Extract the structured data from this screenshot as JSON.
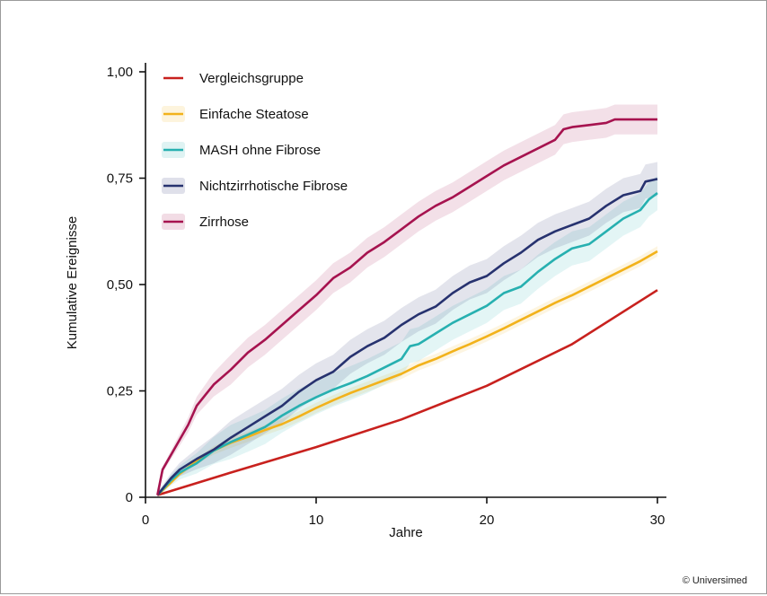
{
  "chart_data": {
    "type": "line",
    "xlabel": "Jahre",
    "ylabel": "Kumulative Ereignisse",
    "xlim": [
      0,
      30.5
    ],
    "ylim": [
      0,
      1.0
    ],
    "xticks": [
      0,
      10,
      20,
      30
    ],
    "xtick_labels": [
      "0",
      "10",
      "20",
      "30"
    ],
    "yticks": [
      0,
      0.25,
      0.5,
      0.75,
      1.0
    ],
    "ytick_labels": [
      "0",
      "0,25",
      "0,50",
      "0,75",
      "1,00"
    ],
    "grid": false,
    "legend_position": "top-left",
    "series": [
      {
        "name": "Vergleichsgruppe",
        "color": "#c8211e",
        "band": false,
        "points": [
          [
            0.7,
            0.005
          ],
          [
            5,
            0.058
          ],
          [
            10,
            0.118
          ],
          [
            15,
            0.183
          ],
          [
            20,
            0.262
          ],
          [
            25,
            0.36
          ],
          [
            30,
            0.487
          ]
        ]
      },
      {
        "name": "Einfache Steatose",
        "color": "#f2b21b",
        "band": true,
        "band_width": 0.012,
        "points": [
          [
            0.7,
            0.005
          ],
          [
            1.5,
            0.035
          ],
          [
            2,
            0.055
          ],
          [
            3,
            0.085
          ],
          [
            4,
            0.11
          ],
          [
            5,
            0.128
          ],
          [
            6,
            0.142
          ],
          [
            7,
            0.158
          ],
          [
            8,
            0.172
          ],
          [
            9,
            0.19
          ],
          [
            10,
            0.21
          ],
          [
            11,
            0.228
          ],
          [
            12,
            0.245
          ],
          [
            13,
            0.26
          ],
          [
            14,
            0.275
          ],
          [
            15,
            0.29
          ],
          [
            16,
            0.31
          ],
          [
            17,
            0.325
          ],
          [
            18,
            0.343
          ],
          [
            19,
            0.36
          ],
          [
            20,
            0.378
          ],
          [
            21,
            0.397
          ],
          [
            22,
            0.417
          ],
          [
            23,
            0.437
          ],
          [
            24,
            0.457
          ],
          [
            25,
            0.475
          ],
          [
            26,
            0.495
          ],
          [
            27,
            0.515
          ],
          [
            28,
            0.535
          ],
          [
            29,
            0.555
          ],
          [
            30,
            0.578
          ]
        ]
      },
      {
        "name": "MASH ohne Fibrose",
        "color": "#27b0b0",
        "band": true,
        "band_width": 0.04,
        "points": [
          [
            0.7,
            0.005
          ],
          [
            1.5,
            0.04
          ],
          [
            2,
            0.058
          ],
          [
            3,
            0.08
          ],
          [
            4,
            0.11
          ],
          [
            5,
            0.13
          ],
          [
            6,
            0.147
          ],
          [
            7,
            0.165
          ],
          [
            8,
            0.192
          ],
          [
            9,
            0.215
          ],
          [
            10,
            0.235
          ],
          [
            11,
            0.253
          ],
          [
            12,
            0.268
          ],
          [
            13,
            0.285
          ],
          [
            14,
            0.305
          ],
          [
            15,
            0.325
          ],
          [
            15.5,
            0.355
          ],
          [
            16,
            0.36
          ],
          [
            17,
            0.385
          ],
          [
            18,
            0.41
          ],
          [
            19,
            0.43
          ],
          [
            20,
            0.45
          ],
          [
            21,
            0.48
          ],
          [
            22,
            0.495
          ],
          [
            23,
            0.53
          ],
          [
            24,
            0.56
          ],
          [
            25,
            0.585
          ],
          [
            26,
            0.595
          ],
          [
            27,
            0.625
          ],
          [
            28,
            0.655
          ],
          [
            29,
            0.675
          ],
          [
            29.5,
            0.7
          ],
          [
            30,
            0.715
          ]
        ]
      },
      {
        "name": "Nichtzirrhotische Fibrose",
        "color": "#27326f",
        "band": true,
        "band_width": 0.04,
        "points": [
          [
            0.7,
            0.005
          ],
          [
            1.5,
            0.045
          ],
          [
            2,
            0.065
          ],
          [
            3,
            0.09
          ],
          [
            4,
            0.112
          ],
          [
            5,
            0.14
          ],
          [
            6,
            0.165
          ],
          [
            7,
            0.19
          ],
          [
            8,
            0.215
          ],
          [
            9,
            0.248
          ],
          [
            10,
            0.275
          ],
          [
            11,
            0.295
          ],
          [
            12,
            0.33
          ],
          [
            13,
            0.355
          ],
          [
            14,
            0.375
          ],
          [
            15,
            0.405
          ],
          [
            16,
            0.43
          ],
          [
            17,
            0.448
          ],
          [
            18,
            0.48
          ],
          [
            19,
            0.505
          ],
          [
            20,
            0.52
          ],
          [
            21,
            0.55
          ],
          [
            22,
            0.575
          ],
          [
            23,
            0.605
          ],
          [
            24,
            0.625
          ],
          [
            25,
            0.64
          ],
          [
            26,
            0.655
          ],
          [
            27,
            0.685
          ],
          [
            28,
            0.71
          ],
          [
            29,
            0.72
          ],
          [
            29.3,
            0.742
          ],
          [
            30,
            0.748
          ]
        ]
      },
      {
        "name": "Zirrhose",
        "color": "#a6134f",
        "band": true,
        "band_width": 0.035,
        "points": [
          [
            0.7,
            0.005
          ],
          [
            1,
            0.065
          ],
          [
            1.5,
            0.1
          ],
          [
            2,
            0.135
          ],
          [
            2.5,
            0.17
          ],
          [
            3,
            0.215
          ],
          [
            3.5,
            0.24
          ],
          [
            4,
            0.265
          ],
          [
            5,
            0.3
          ],
          [
            6,
            0.34
          ],
          [
            7,
            0.37
          ],
          [
            8,
            0.405
          ],
          [
            9,
            0.44
          ],
          [
            10,
            0.475
          ],
          [
            11,
            0.515
          ],
          [
            12,
            0.54
          ],
          [
            13,
            0.575
          ],
          [
            14,
            0.6
          ],
          [
            15,
            0.63
          ],
          [
            16,
            0.66
          ],
          [
            17,
            0.685
          ],
          [
            18,
            0.705
          ],
          [
            19,
            0.73
          ],
          [
            20,
            0.755
          ],
          [
            21,
            0.78
          ],
          [
            22,
            0.8
          ],
          [
            23,
            0.82
          ],
          [
            24,
            0.84
          ],
          [
            24.5,
            0.865
          ],
          [
            25,
            0.87
          ],
          [
            26,
            0.875
          ],
          [
            27,
            0.88
          ],
          [
            27.5,
            0.888
          ],
          [
            30,
            0.888
          ]
        ]
      }
    ]
  },
  "copyright": "© Universimed"
}
